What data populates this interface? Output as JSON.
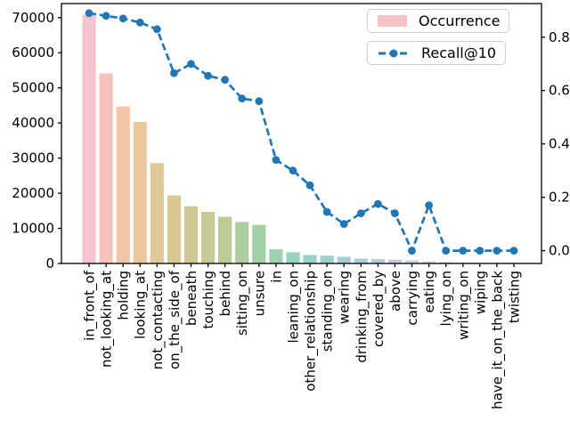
{
  "chart_data": {
    "type": "bar",
    "subtype": "bar+line combo, dual y-axis",
    "title": "",
    "xlabel": "",
    "ylabel_left": "",
    "ylabel_right": "",
    "grid": false,
    "legend_position": "upper-right",
    "categories": [
      "in_front_of",
      "not_looking_at",
      "holding",
      "looking_at",
      "not_contacting",
      "on_the_side_of",
      "beneath",
      "touching",
      "behind",
      "sitting_on",
      "unsure",
      "in",
      "leaning_on",
      "other_relationship",
      "standing_on",
      "wearing",
      "drinking_from",
      "covered_by",
      "above",
      "carrying",
      "eating",
      "lying_on",
      "writing_on",
      "wiping",
      "have_it_on_the_back",
      "twisting"
    ],
    "series": [
      {
        "name": "Occurrence",
        "type": "bar",
        "yaxis": "left",
        "values": [
          70900,
          54200,
          44800,
          40400,
          28700,
          19500,
          16400,
          14800,
          13400,
          11900,
          11100,
          4100,
          3300,
          2500,
          2300,
          2000,
          1500,
          1350,
          1200,
          1000,
          700,
          500,
          350,
          250,
          180,
          150
        ]
      },
      {
        "name": "Recall@10",
        "type": "line",
        "yaxis": "right",
        "values": [
          0.89,
          0.88,
          0.87,
          0.855,
          0.83,
          0.665,
          0.7,
          0.655,
          0.64,
          0.57,
          0.56,
          0.34,
          0.3,
          0.245,
          0.145,
          0.1,
          0.14,
          0.175,
          0.14,
          0.0,
          0.17,
          0.0,
          0.0,
          0.0,
          0.0,
          0.0
        ]
      }
    ],
    "left_axis": {
      "tick_labels": [
        "0",
        "10000",
        "20000",
        "30000",
        "40000",
        "50000",
        "60000",
        "70000"
      ],
      "min": 0,
      "max": 74000
    },
    "right_axis": {
      "tick_labels": [
        "0.0",
        "0.2",
        "0.4",
        "0.6",
        "0.8"
      ],
      "min": -0.048,
      "max": 0.926
    },
    "colors": {
      "line": "#2077b4",
      "legend_patch": "#f4c4c6",
      "bars": [
        "#f4c5cf",
        "#f4c3bc",
        "#f3c5a8",
        "#ebc79d",
        "#e1c897",
        "#d9c893",
        "#d0c993",
        "#c6ca95",
        "#bbcc99",
        "#afce9f",
        "#a3d0a9",
        "#9bd2b3",
        "#97d3be",
        "#98d2c8",
        "#9dd0d1",
        "#a5cdd8",
        "#adcbdc",
        "#b5cade",
        "#bccde2",
        "#c2d3e5",
        "#c8d8e8",
        "#cedce9",
        "#d2dee9",
        "#d5dfe7",
        "#d7dfe4",
        "#d8dee2"
      ]
    }
  }
}
